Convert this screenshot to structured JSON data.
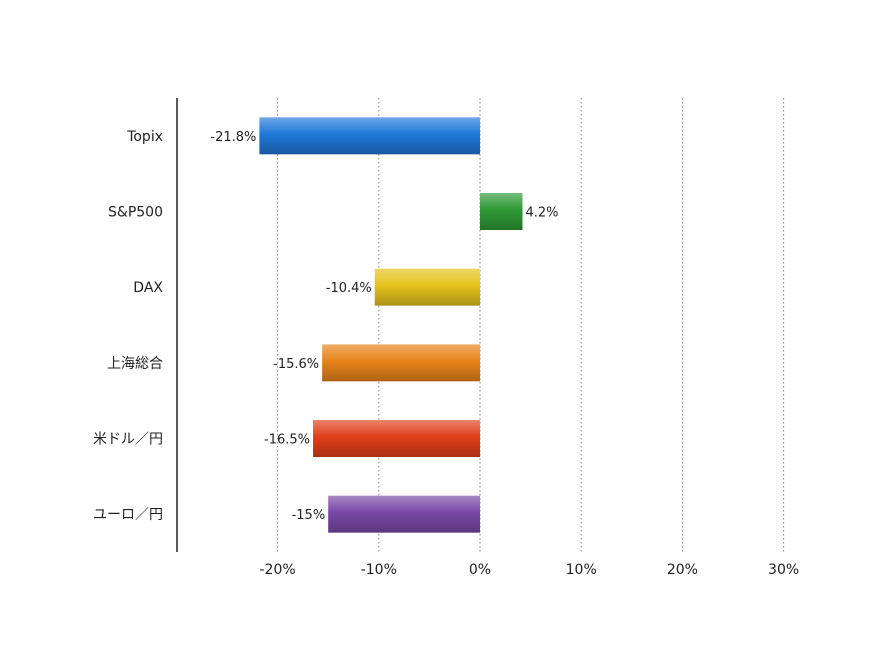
{
  "chart_data": {
    "type": "bar",
    "orientation": "horizontal",
    "title": "",
    "xlabel": "",
    "ylabel": "",
    "categories": [
      "Topix",
      "S&P500",
      "DAX",
      "上海総合",
      "米ドル／円",
      "ユーロ／円"
    ],
    "values": [
      -21.8,
      4.2,
      -10.4,
      -15.6,
      -16.5,
      -15
    ],
    "data_labels": [
      "-21.8%",
      "4.2%",
      "-10.4%",
      "-15.6%",
      "-16.5%",
      "-15%"
    ],
    "bar_colors": [
      "#1f78d8",
      "#2e9a35",
      "#e5c21c",
      "#e8841a",
      "#e0401a",
      "#7a48a8"
    ],
    "xlim": [
      -30,
      30
    ],
    "x_ticks": [
      -20,
      -10,
      0,
      10,
      20,
      30
    ],
    "x_tick_labels": [
      "-20%",
      "-10%",
      "0%",
      "10%",
      "20%",
      "30%"
    ],
    "grid": "vertical dotted",
    "legend": "none"
  }
}
